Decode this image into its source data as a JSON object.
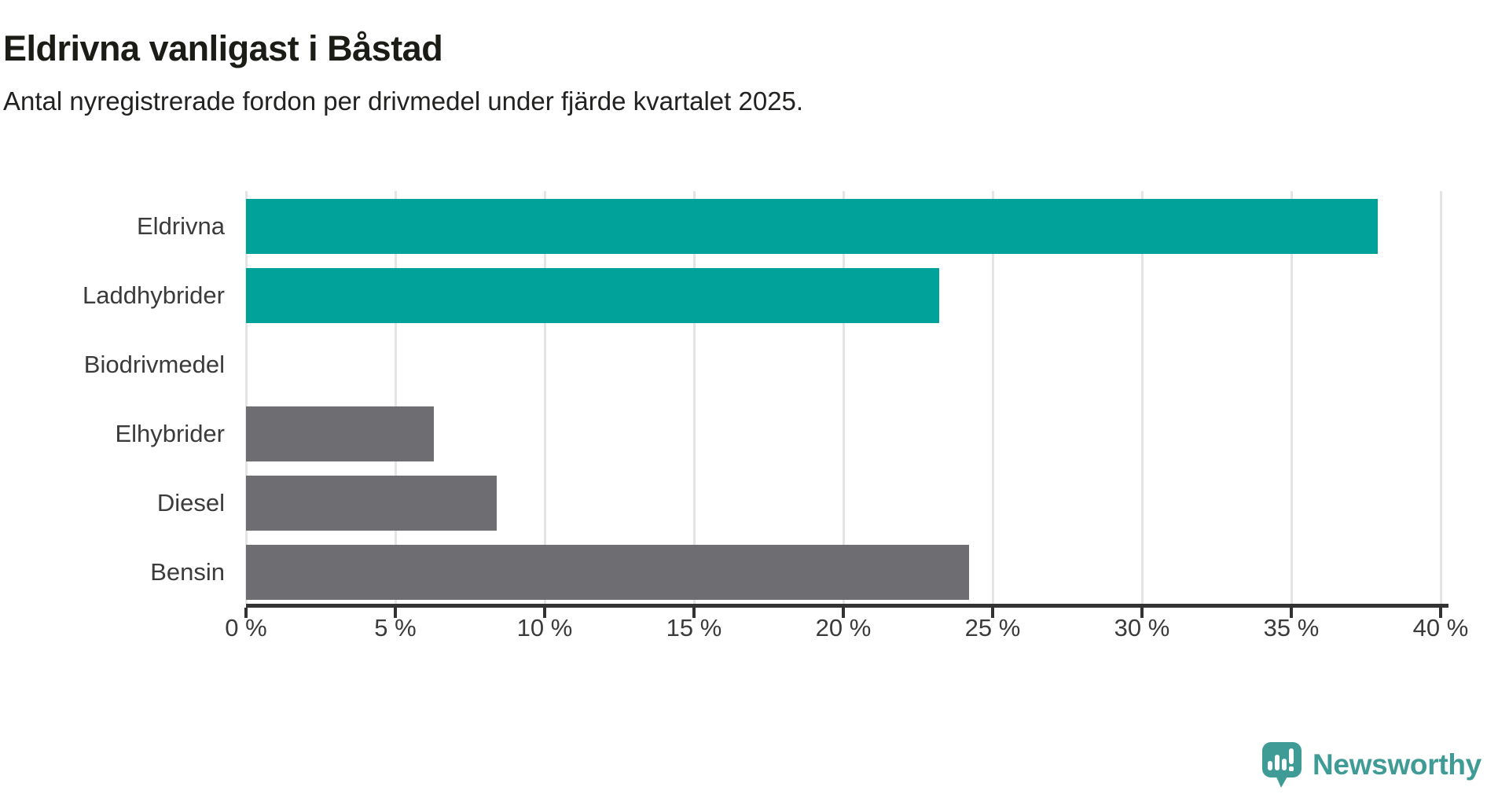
{
  "header": {
    "title": "Eldrivna vanligast i Båstad",
    "subtitle": "Antal nyregistrerade fordon per drivmedel under fjärde kvartalet 2025."
  },
  "chart_data": {
    "type": "bar",
    "orientation": "horizontal",
    "title": "Eldrivna vanligast i Båstad",
    "subtitle": "Antal nyregistrerade fordon per drivmedel under fjärde kvartalet 2025.",
    "categories": [
      "Eldrivna",
      "Laddhybrider",
      "Biodrivmedel",
      "Elhybrider",
      "Diesel",
      "Bensin"
    ],
    "values": [
      37.9,
      23.2,
      0,
      6.3,
      8.4,
      24.2
    ],
    "unit": "%",
    "bar_colors": [
      "#00a29a",
      "#00a29a",
      "#00a29a",
      "#6d6d72",
      "#6d6d72",
      "#6d6d72"
    ],
    "xlabel": "",
    "ylabel": "",
    "xlim": [
      0,
      40
    ],
    "xticks": [
      0,
      5,
      10,
      15,
      20,
      25,
      30,
      35,
      40
    ],
    "xtick_labels": [
      "0 %",
      "5 %",
      "10 %",
      "15 %",
      "20 %",
      "25 %",
      "30 %",
      "35 %",
      "40 %"
    ],
    "grid": "vertical-on",
    "legend": "none"
  },
  "colors": {
    "accent_teal": "#00a29a",
    "neutral_gray": "#6d6d72",
    "gridline": "#e4e4e4",
    "axis": "#333333",
    "logo_teal": "#3f9b95"
  },
  "footer": {
    "brand": "Newsworthy",
    "logo_icon": "newsworthy-bar-chart-bubble-icon"
  }
}
